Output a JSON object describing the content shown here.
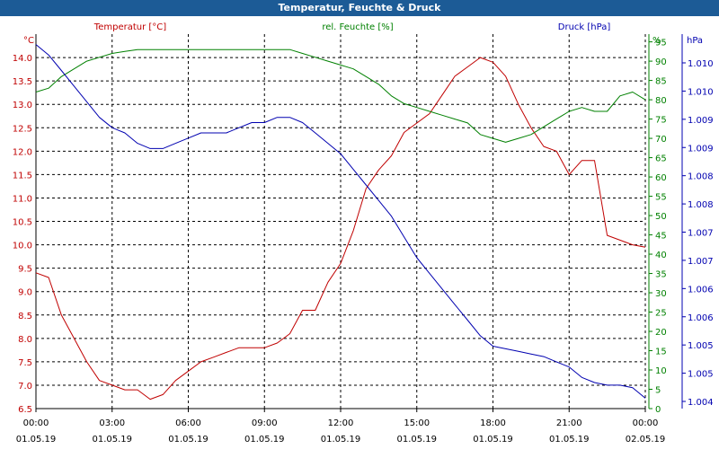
{
  "title": "Temperatur, Feuchte & Druck",
  "colors": {
    "title_bg": "#1c5b96",
    "temperature": "#c00000",
    "humidity": "#008000",
    "pressure": "#0000b0",
    "grid": "#000000"
  },
  "chart_data": {
    "type": "line",
    "title": "Temperatur, Feuchte & Druck",
    "x_axis": {
      "ticks": [
        {
          "time": "00:00",
          "date": "01.05.19"
        },
        {
          "time": "03:00",
          "date": "01.05.19"
        },
        {
          "time": "06:00",
          "date": "01.05.19"
        },
        {
          "time": "09:00",
          "date": "01.05.19"
        },
        {
          "time": "12:00",
          "date": "01.05.19"
        },
        {
          "time": "15:00",
          "date": "01.05.19"
        },
        {
          "time": "18:00",
          "date": "01.05.19"
        },
        {
          "time": "21:00",
          "date": "01.05.19"
        },
        {
          "time": "00:00",
          "date": "02.05.19"
        }
      ],
      "range_hours": [
        0,
        24
      ]
    },
    "axes": {
      "left": {
        "label": "Temperatur [°C]",
        "unit": "°C",
        "ylim": [
          6.5,
          14.5
        ],
        "ticks": [
          "14.0",
          "13.5",
          "13.0",
          "12.5",
          "12.0",
          "11.5",
          "11.0",
          "10.5",
          "10.0",
          "9.5",
          "9.0",
          "8.5",
          "8.0",
          "7.5",
          "7.0",
          "6.5"
        ]
      },
      "mid": {
        "label": "rel. Feuchte [%]",
        "unit": "%",
        "ylim": [
          0,
          97
        ],
        "ticks": [
          "95",
          "90",
          "85",
          "80",
          "75",
          "70",
          "65",
          "60",
          "55",
          "50",
          "45",
          "40",
          "35",
          "30",
          "25",
          "20",
          "15",
          "10",
          "5",
          "0"
        ]
      },
      "right": {
        "label": "Druck [hPa]",
        "unit": "hPa",
        "ylim": [
          1003.7,
          1010.9
        ],
        "ticks": [
          "1.010",
          "1.010",
          "1.009",
          "1.009",
          "1.008",
          "1.008",
          "1.007",
          "1.007",
          "1.006",
          "1.006",
          "1.005",
          "1.005",
          "1.004"
        ]
      }
    },
    "series": [
      {
        "name": "Temperatur",
        "axis": "left",
        "color": "#c00000",
        "x": [
          0,
          0.5,
          1,
          1.5,
          2,
          2.5,
          3,
          3.5,
          4,
          4.5,
          5,
          5.5,
          6,
          6.5,
          7,
          7.5,
          8,
          8.5,
          9,
          9.5,
          10,
          10.5,
          11,
          11.5,
          12,
          12.5,
          13,
          13.5,
          14,
          14.5,
          15,
          15.5,
          16,
          16.5,
          17,
          17.5,
          18,
          18.5,
          19,
          19.5,
          20,
          20.5,
          21,
          21.5,
          22,
          22.5,
          23,
          23.5,
          24
        ],
        "values": [
          9.4,
          9.3,
          8.5,
          8.0,
          7.5,
          7.1,
          7.0,
          6.9,
          6.9,
          6.7,
          6.8,
          7.1,
          7.3,
          7.5,
          7.6,
          7.7,
          7.8,
          7.8,
          7.8,
          7.9,
          8.1,
          8.6,
          8.6,
          9.2,
          9.6,
          10.3,
          11.2,
          11.6,
          11.9,
          12.4,
          12.6,
          12.8,
          13.2,
          13.6,
          13.8,
          14.0,
          13.9,
          13.6,
          13.0,
          12.5,
          12.1,
          12.0,
          11.5,
          11.8,
          11.8,
          10.2,
          10.1,
          10.0,
          9.95
        ]
      },
      {
        "name": "rel. Feuchte",
        "axis": "mid",
        "color": "#008000",
        "x": [
          0,
          0.5,
          1,
          1.5,
          2,
          2.5,
          3,
          3.5,
          4,
          4.5,
          5,
          5.5,
          6,
          6.5,
          7,
          7.5,
          8,
          8.5,
          9,
          9.5,
          10,
          10.5,
          11,
          11.5,
          12,
          12.5,
          13,
          13.5,
          14,
          14.5,
          15,
          15.5,
          16,
          16.5,
          17,
          17.5,
          18,
          18.5,
          19,
          19.5,
          20,
          20.5,
          21,
          21.5,
          22,
          22.5,
          23,
          23.5,
          24
        ],
        "values": [
          82,
          83,
          86,
          88,
          90,
          91,
          92,
          92.5,
          93,
          93,
          93,
          93,
          93,
          93,
          93,
          93,
          93,
          93,
          93,
          93,
          93,
          92,
          91,
          90,
          89,
          88,
          86,
          84,
          81,
          79,
          78,
          77,
          76,
          75,
          74,
          71,
          70,
          69,
          70,
          71,
          73,
          75,
          77,
          78,
          77,
          77,
          81,
          82,
          80
        ]
      },
      {
        "name": "Druck",
        "axis": "right",
        "color": "#0000b0",
        "x": [
          0,
          0.5,
          1,
          1.5,
          2,
          2.5,
          3,
          3.5,
          4,
          4.5,
          5,
          5.5,
          6,
          6.5,
          7,
          7.5,
          8,
          8.5,
          9,
          9.5,
          10,
          10.5,
          11,
          11.5,
          12,
          12.5,
          13,
          13.5,
          14,
          14.5,
          15,
          15.5,
          16,
          16.5,
          17,
          17.5,
          18,
          18.5,
          19,
          19.5,
          20,
          20.5,
          21,
          21.5,
          22,
          22.5,
          23,
          23.5,
          24
        ],
        "values": [
          1010.7,
          1010.5,
          1010.2,
          1009.9,
          1009.6,
          1009.3,
          1009.1,
          1009.0,
          1008.8,
          1008.7,
          1008.7,
          1008.8,
          1008.9,
          1009.0,
          1009.0,
          1009.0,
          1009.1,
          1009.2,
          1009.2,
          1009.3,
          1009.3,
          1009.2,
          1009.0,
          1008.8,
          1008.6,
          1008.3,
          1008.0,
          1007.7,
          1007.4,
          1007.0,
          1006.6,
          1006.3,
          1006.0,
          1005.7,
          1005.4,
          1005.1,
          1004.9,
          1004.85,
          1004.8,
          1004.75,
          1004.7,
          1004.6,
          1004.5,
          1004.3,
          1004.2,
          1004.15,
          1004.15,
          1004.1,
          1003.9
        ]
      }
    ],
    "grid": true
  }
}
